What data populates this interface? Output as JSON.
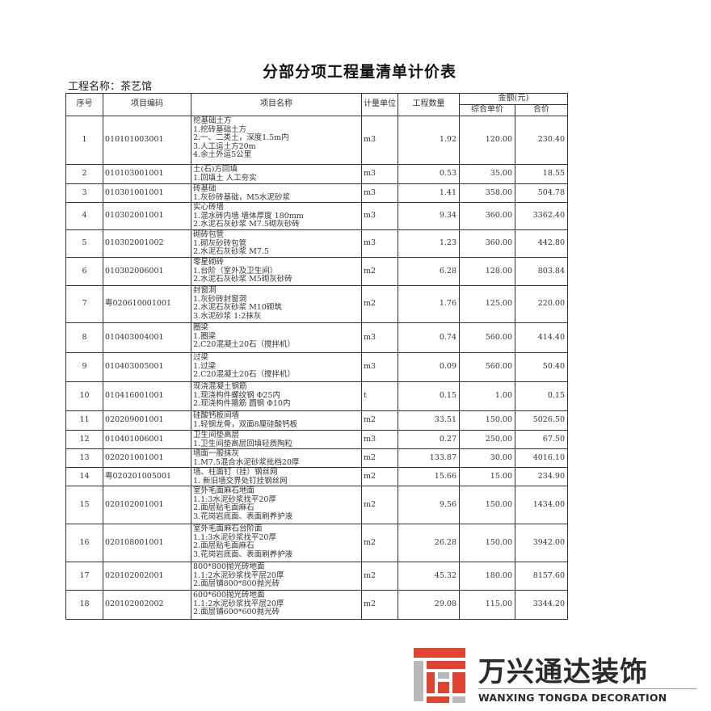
{
  "document": {
    "title": "分部分项工程量清单计价表",
    "project_label": "工程名称：",
    "project_name": "茶艺馆"
  },
  "table": {
    "headers": {
      "seq": "序号",
      "code": "项目编码",
      "name": "项目名称",
      "unit": "计量单位",
      "qty": "工程数量",
      "amount": "金额(元)",
      "unit_price": "综合单价",
      "total": "合价"
    },
    "rows": [
      {
        "seq": "1",
        "code": "010101003001",
        "name": [
          "挖基础土方",
          "1.挖砖基础土方",
          "2.一、二类土，深度1.5m内",
          "3.人工运土方20m",
          "4.余土外运5公里"
        ],
        "unit": "m3",
        "qty": "1.92",
        "price": "120.00",
        "total": "230.40"
      },
      {
        "seq": "2",
        "code": "010103001001",
        "name": [
          "土(石)方回填",
          "1.回填土 人工夯实"
        ],
        "unit": "m3",
        "qty": "0.53",
        "price": "35.00",
        "total": "18.55"
      },
      {
        "seq": "3",
        "code": "010301001001",
        "name": [
          "砖基础",
          "1.灰砂砖基础，M5水泥砂浆"
        ],
        "unit": "m3",
        "qty": "1.41",
        "price": "358.00",
        "total": "504.78"
      },
      {
        "seq": "4",
        "code": "010302001001",
        "name": [
          "实心砖墙",
          "1.混水砖内墙 墙体厚度 180mm",
          "2.水泥石灰砂浆 M7.5砌灰砂砖"
        ],
        "unit": "m3",
        "qty": "9.34",
        "price": "360.00",
        "total": "3362.40"
      },
      {
        "seq": "5",
        "code": "010302001002",
        "name": [
          "砌砖包管",
          "1.砌灰砂砖包管",
          "2.水泥石灰砂浆 M7.5"
        ],
        "unit": "m3",
        "qty": "1.23",
        "price": "360.00",
        "total": "442.80"
      },
      {
        "seq": "6",
        "code": "010302006001",
        "name": [
          "零星砌砖",
          "1.台阶（室外及卫生间）",
          "2.水泥石灰砂浆 M5砌灰砂砖"
        ],
        "unit": "m2",
        "qty": "6.28",
        "price": "128.00",
        "total": "803.84"
      },
      {
        "seq": "7",
        "code": "粤020610001001",
        "name": [
          "封窗洞",
          "1.灰砂砖封窗洞",
          "2.水泥石灰砂浆 M10砌筑",
          "3.水泥砂浆 1:2抹灰"
        ],
        "unit": "m2",
        "qty": "1.76",
        "price": "125.00",
        "total": "220.00"
      },
      {
        "seq": "8",
        "code": "010403004001",
        "name": [
          "圈梁",
          "1.圈梁",
          "2.C20混凝土20石（搅拌机）"
        ],
        "unit": "m3",
        "qty": "0.74",
        "price": "560.00",
        "total": "414.40"
      },
      {
        "seq": "9",
        "code": "010403005001",
        "name": [
          "过梁",
          "1.过梁",
          "2.C20混凝土20石（搅拌机）"
        ],
        "unit": "m3",
        "qty": "0.09",
        "price": "560.00",
        "total": "50.40"
      },
      {
        "seq": "10",
        "code": "010416001001",
        "name": [
          "现浇混凝土钢筋",
          "1.现浇构件螺纹钢 Φ25内",
          "2.现浇构件箍筋 圆钢 Φ10内"
        ],
        "unit": "t",
        "qty": "0.15",
        "price": "1.00",
        "total": "0.15"
      },
      {
        "seq": "11",
        "code": "020209001001",
        "name": [
          "硅酸钙板间墙",
          "1.轻钢龙骨，双面8厘硅酸钙板"
        ],
        "unit": "m2",
        "qty": "33.51",
        "price": "150.00",
        "total": "5026.50"
      },
      {
        "seq": "12",
        "code": "010401006001",
        "name": [
          "卫生间垫高层",
          "1.卫生间垫高层回填轻质陶粒"
        ],
        "unit": "m3",
        "qty": "0.27",
        "price": "250.00",
        "total": "67.50"
      },
      {
        "seq": "13",
        "code": "020201001001",
        "name": [
          "墙面一般抹灰",
          "1.M7.5混合水泥砂浆批档20厚"
        ],
        "unit": "m2",
        "qty": "133.87",
        "price": "30.00",
        "total": "4016.10"
      },
      {
        "seq": "14",
        "code": "粤020201005001",
        "name": [
          "墙、柱面钉（挂）钢丝网",
          "1. 新旧墙交界处钉挂钢丝网"
        ],
        "unit": "m2",
        "qty": "15.66",
        "price": "15.00",
        "total": "234.90"
      },
      {
        "seq": "15",
        "code": "020102001001",
        "name": [
          "室外毛面麻石地面",
          "1.1:3水泥砂浆找平20厚",
          "2.面层贴毛面麻石",
          "3.花岗岩底面、表面刷养护液"
        ],
        "unit": "m2",
        "qty": "9.56",
        "price": "150.00",
        "total": "1434.00"
      },
      {
        "seq": "16",
        "code": "020108001001",
        "name": [
          "室外毛面麻石台阶面",
          "1.1:3水泥砂浆找平20厚",
          "2.面层贴毛面麻石",
          "3.花岗岩底面、表面刷养护液"
        ],
        "unit": "m2",
        "qty": "26.28",
        "price": "150.00",
        "total": "3942.00"
      },
      {
        "seq": "17",
        "code": "020102002001",
        "name": [
          "800*800抛光砖地面",
          "1.1:2水泥砂浆找平层20厚",
          "2.面层铺800*800抛光砖"
        ],
        "unit": "m2",
        "qty": "45.32",
        "price": "180.00",
        "total": "8157.60"
      },
      {
        "seq": "18",
        "code": "020102002002",
        "name": [
          "600*600抛光砖地面",
          "1.1:2水泥砂浆找平层20厚",
          "2.面层铺600*600抛光砖"
        ],
        "unit": "m2",
        "qty": "29.08",
        "price": "115.00",
        "total": "3344.20"
      }
    ]
  },
  "logo": {
    "name_cn": "万兴通达装饰",
    "name_en": "WANXING TONGDA DECORATION",
    "colors": {
      "red": "#e0432f",
      "gray": "#b8b8b8",
      "text": "#2a2a2a"
    }
  }
}
